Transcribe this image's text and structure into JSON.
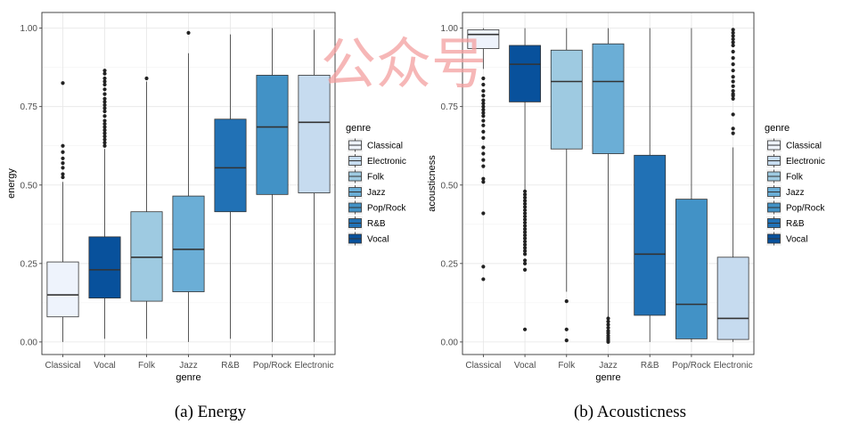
{
  "watermark": "公众号",
  "palette": {
    "Classical": "#eef3fc",
    "Electronic": "#c6dbef",
    "Folk": "#9ecae1",
    "Jazz": "#6baed6",
    "Pop/Rock": "#4292c6",
    "R&B": "#2171b5",
    "Vocal": "#08519c"
  },
  "chart_data": [
    {
      "type": "boxplot",
      "caption": "(a) Energy",
      "xlabel": "genre",
      "ylabel": "energy",
      "ylim": [
        -0.04,
        1.05
      ],
      "yticks": [
        "0.00",
        "0.25",
        "0.50",
        "0.75",
        "1.00"
      ],
      "grid": true,
      "legend": {
        "title": "genre",
        "placement": "right",
        "entries": [
          "Classical",
          "Electronic",
          "Folk",
          "Jazz",
          "Pop/Rock",
          "R&B",
          "Vocal"
        ]
      },
      "categories": [
        "Classical",
        "Vocal",
        "Folk",
        "Jazz",
        "R&B",
        "Pop/Rock",
        "Electronic"
      ],
      "boxes": [
        {
          "genre": "Classical",
          "low": 0.0,
          "q1": 0.08,
          "median": 0.15,
          "q3": 0.255,
          "high": 0.51,
          "outliers": [
            0.825,
            0.625,
            0.605,
            0.585,
            0.57,
            0.555,
            0.535,
            0.525
          ]
        },
        {
          "genre": "Vocal",
          "low": 0.01,
          "q1": 0.14,
          "median": 0.23,
          "q3": 0.335,
          "high": 0.615,
          "outliers": [
            0.865,
            0.855,
            0.84,
            0.83,
            0.82,
            0.805,
            0.79,
            0.775,
            0.765,
            0.755,
            0.745,
            0.735,
            0.72,
            0.705,
            0.695,
            0.685,
            0.675,
            0.665,
            0.655,
            0.645,
            0.635,
            0.625
          ]
        },
        {
          "genre": "Folk",
          "low": 0.01,
          "q1": 0.13,
          "median": 0.27,
          "q3": 0.415,
          "high": 0.83,
          "outliers": [
            0.84
          ]
        },
        {
          "genre": "Jazz",
          "low": 0.0,
          "q1": 0.16,
          "median": 0.295,
          "q3": 0.465,
          "high": 0.92,
          "outliers": [
            0.985
          ]
        },
        {
          "genre": "R&B",
          "low": 0.01,
          "q1": 0.415,
          "median": 0.555,
          "q3": 0.71,
          "high": 0.98,
          "outliers": []
        },
        {
          "genre": "Pop/Rock",
          "low": 0.0,
          "q1": 0.47,
          "median": 0.685,
          "q3": 0.85,
          "high": 1.0,
          "outliers": []
        },
        {
          "genre": "Electronic",
          "low": 0.0,
          "q1": 0.475,
          "median": 0.7,
          "q3": 0.85,
          "high": 0.995,
          "outliers": []
        }
      ]
    },
    {
      "type": "boxplot",
      "caption": "(b) Acousticness",
      "xlabel": "genre",
      "ylabel": "acousticness",
      "ylim": [
        -0.04,
        1.05
      ],
      "yticks": [
        "0.00",
        "0.25",
        "0.50",
        "0.75",
        "1.00"
      ],
      "grid": true,
      "legend": {
        "title": "genre",
        "placement": "right",
        "entries": [
          "Classical",
          "Electronic",
          "Folk",
          "Jazz",
          "Pop/Rock",
          "R&B",
          "Vocal"
        ]
      },
      "categories": [
        "Classical",
        "Vocal",
        "Folk",
        "Jazz",
        "R&B",
        "Pop/Rock",
        "Electronic"
      ],
      "boxes": [
        {
          "genre": "Classical",
          "low": 0.87,
          "q1": 0.935,
          "median": 0.98,
          "q3": 0.995,
          "high": 1.0,
          "outliers": [
            0.84,
            0.82,
            0.8,
            0.785,
            0.77,
            0.76,
            0.75,
            0.74,
            0.73,
            0.72,
            0.705,
            0.69,
            0.67,
            0.65,
            0.62,
            0.6,
            0.58,
            0.56,
            0.52,
            0.51,
            0.41,
            0.24,
            0.2
          ]
        },
        {
          "genre": "Vocal",
          "low": 0.485,
          "q1": 0.765,
          "median": 0.885,
          "q3": 0.945,
          "high": 1.0,
          "outliers": [
            0.48,
            0.47,
            0.46,
            0.45,
            0.44,
            0.43,
            0.42,
            0.41,
            0.4,
            0.39,
            0.38,
            0.37,
            0.36,
            0.35,
            0.34,
            0.33,
            0.32,
            0.31,
            0.3,
            0.29,
            0.28,
            0.26,
            0.25,
            0.23,
            0.04
          ]
        },
        {
          "genre": "Folk",
          "low": 0.16,
          "q1": 0.615,
          "median": 0.83,
          "q3": 0.93,
          "high": 1.0,
          "outliers": [
            0.13,
            0.04,
            0.005
          ]
        },
        {
          "genre": "Jazz",
          "low": 0.08,
          "q1": 0.6,
          "median": 0.83,
          "q3": 0.95,
          "high": 1.0,
          "outliers": [
            0.075,
            0.065,
            0.055,
            0.045,
            0.035,
            0.028,
            0.02,
            0.013,
            0.006,
            0.0
          ]
        },
        {
          "genre": "R&B",
          "low": 0.0,
          "q1": 0.085,
          "median": 0.28,
          "q3": 0.595,
          "high": 1.0,
          "outliers": []
        },
        {
          "genre": "Pop/Rock",
          "low": 0.0,
          "q1": 0.01,
          "median": 0.12,
          "q3": 0.455,
          "high": 1.0,
          "outliers": []
        },
        {
          "genre": "Electronic",
          "low": 0.0,
          "q1": 0.008,
          "median": 0.075,
          "q3": 0.27,
          "high": 0.62,
          "outliers": [
            0.995,
            0.985,
            0.975,
            0.965,
            0.955,
            0.945,
            0.925,
            0.905,
            0.885,
            0.865,
            0.845,
            0.83,
            0.815,
            0.8,
            0.79,
            0.785,
            0.775,
            0.725,
            0.68,
            0.665
          ]
        }
      ]
    }
  ]
}
